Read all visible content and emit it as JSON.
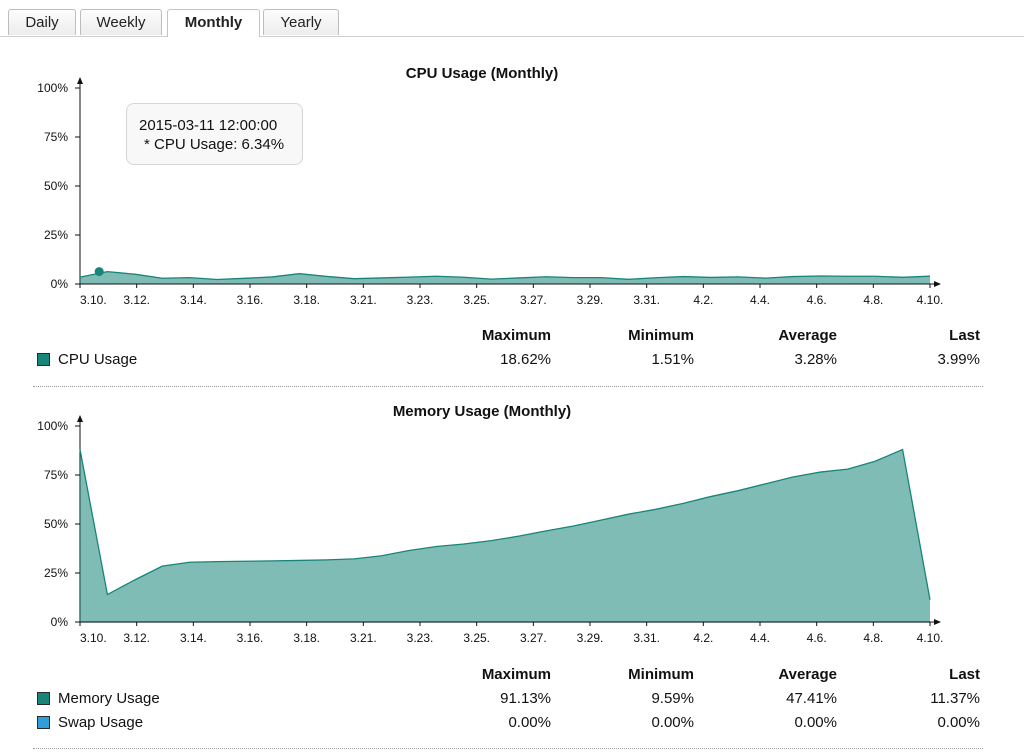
{
  "tabs": [
    {
      "label": "Daily",
      "active": false
    },
    {
      "label": "Weekly",
      "active": false
    },
    {
      "label": "Monthly",
      "active": true
    },
    {
      "label": "Yearly",
      "active": false
    }
  ],
  "x_ticks": [
    "3.10.",
    "3.12.",
    "3.14.",
    "3.16.",
    "3.18.",
    "3.21.",
    "3.23.",
    "3.25.",
    "3.27.",
    "3.29.",
    "3.31.",
    "4.2.",
    "4.4.",
    "4.6.",
    "4.8.",
    "4.10."
  ],
  "y_ticks": [
    "100%",
    "75%",
    "50%",
    "25%",
    "0%"
  ],
  "stats_headers": {
    "max": "Maximum",
    "min": "Minimum",
    "avg": "Average",
    "last": "Last"
  },
  "cpu": {
    "title": "CPU Usage (Monthly)",
    "series": [
      {
        "name": "CPU Usage",
        "color": "#17857a",
        "max": "18.62%",
        "min": "1.51%",
        "avg": "3.28%",
        "last": "3.99%"
      }
    ],
    "tooltip": {
      "time": "2015-03-11 12:00:00",
      "line": "* CPU Usage: 6.34%"
    }
  },
  "memory": {
    "title": "Memory Usage (Monthly)",
    "series": [
      {
        "name": "Memory Usage",
        "color": "#17857a",
        "max": "91.13%",
        "min": "9.59%",
        "avg": "47.41%",
        "last": "11.37%"
      },
      {
        "name": "Swap Usage",
        "color": "#2e9fd8",
        "max": "0.00%",
        "min": "0.00%",
        "avg": "0.00%",
        "last": "0.00%"
      }
    ]
  },
  "chart_data": [
    {
      "type": "area",
      "title": "CPU Usage (Monthly)",
      "ylim": [
        0,
        100
      ],
      "y_unit": "%",
      "x": [
        "3.10.",
        "3.11.",
        "3.12.",
        "3.13.",
        "3.14.",
        "3.15.",
        "3.16.",
        "3.17.",
        "3.18.",
        "3.19.",
        "3.20.",
        "3.21.",
        "3.22.",
        "3.23.",
        "3.24.",
        "3.25.",
        "3.26.",
        "3.27.",
        "3.28.",
        "3.29.",
        "3.30.",
        "3.31.",
        "4.1.",
        "4.2.",
        "4.3.",
        "4.4.",
        "4.5.",
        "4.6.",
        "4.7.",
        "4.8.",
        "4.9.",
        "4.10."
      ],
      "series": [
        {
          "name": "CPU Usage",
          "color": "#17857a",
          "values": [
            3.5,
            6.3,
            4.5,
            3.2,
            3.0,
            2.8,
            2.9,
            3.1,
            5.5,
            3.6,
            3.2,
            3.1,
            3.0,
            4.2,
            3.2,
            3.0,
            3.1,
            3.2,
            3.5,
            3.0,
            2.9,
            3.2,
            3.3,
            3.6,
            3.4,
            3.5,
            3.8,
            3.6,
            4.2,
            3.7,
            3.9,
            3.99
          ]
        }
      ],
      "highlight": {
        "x": "2015-03-11 12:00:00",
        "value": 6.34
      }
    },
    {
      "type": "area",
      "title": "Memory Usage (Monthly)",
      "ylim": [
        0,
        100
      ],
      "y_unit": "%",
      "x": [
        "3.10.",
        "3.11.",
        "3.12.",
        "3.13.",
        "3.14.",
        "3.15.",
        "3.16.",
        "3.17.",
        "3.18.",
        "3.19.",
        "3.20.",
        "3.21.",
        "3.22.",
        "3.23.",
        "3.24.",
        "3.25.",
        "3.26.",
        "3.27.",
        "3.28.",
        "3.29.",
        "3.30.",
        "3.31.",
        "4.1.",
        "4.2.",
        "4.3.",
        "4.4.",
        "4.5.",
        "4.6.",
        "4.7.",
        "4.8.",
        "4.9.",
        "4.10."
      ],
      "series": [
        {
          "name": "Memory Usage",
          "color": "#17857a",
          "values": [
            88.0,
            14.0,
            21.5,
            28.5,
            30.5,
            30.8,
            31.0,
            31.2,
            31.4,
            31.7,
            32.2,
            33.8,
            36.5,
            38.5,
            39.8,
            41.5,
            43.8,
            46.5,
            49.0,
            52.0,
            55.0,
            57.5,
            60.5,
            64.0,
            67.0,
            70.5,
            74.0,
            76.5,
            78.0,
            82.0,
            88.0,
            11.37
          ]
        },
        {
          "name": "Swap Usage",
          "color": "#2e9fd8",
          "values": [
            0,
            0,
            0,
            0,
            0,
            0,
            0,
            0,
            0,
            0,
            0,
            0,
            0,
            0,
            0,
            0,
            0,
            0,
            0,
            0,
            0,
            0,
            0,
            0,
            0,
            0,
            0,
            0,
            0,
            0,
            0,
            0
          ]
        }
      ]
    }
  ]
}
